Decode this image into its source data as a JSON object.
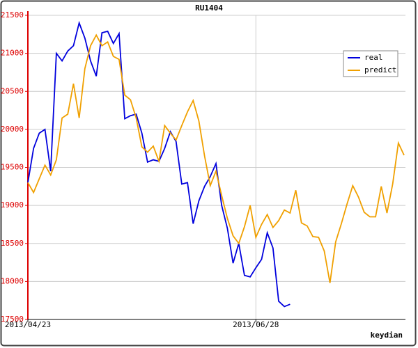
{
  "chart_data": {
    "type": "line",
    "title": "RU1404",
    "footer": "keydian",
    "categories": [
      "2013/04/23",
      null,
      null,
      null,
      null,
      null,
      null,
      null,
      null,
      null,
      null,
      null,
      null,
      null,
      null,
      null,
      null,
      null,
      null,
      null,
      null,
      null,
      null,
      null,
      null,
      null,
      null,
      null,
      null,
      null,
      null,
      null,
      null,
      null,
      null,
      null,
      null,
      null,
      null,
      null,
      "2013/06/28",
      null,
      null,
      null,
      null,
      null,
      null,
      null,
      null,
      null,
      null,
      null,
      null,
      null,
      null,
      null,
      null,
      null,
      null,
      null,
      null,
      null,
      null,
      null,
      null,
      null,
      null
    ],
    "series": [
      {
        "name": "real",
        "color": "#0000dd",
        "values": [
          19300,
          19750,
          19950,
          20000,
          19450,
          21000,
          20900,
          21030,
          21100,
          21400,
          21200,
          20900,
          20700,
          21270,
          21290,
          21130,
          21260,
          20140,
          20180,
          20200,
          19950,
          19570,
          19600,
          19580,
          19750,
          19970,
          19840,
          19280,
          19300,
          18760,
          19060,
          19250,
          19380,
          19550,
          19000,
          18700,
          18240,
          18500,
          18080,
          18060,
          18180,
          18290,
          18640,
          18440,
          17740,
          17670,
          17700,
          null,
          null,
          null,
          null,
          null,
          null,
          null,
          null,
          null,
          null,
          null,
          null,
          null,
          null,
          null,
          null,
          null,
          null,
          null,
          null
        ]
      },
      {
        "name": "predict",
        "color": "#f0a000",
        "values": [
          19300,
          19170,
          19350,
          19530,
          19400,
          19600,
          20150,
          20200,
          20600,
          20150,
          20800,
          21100,
          21240,
          21100,
          21150,
          20960,
          20920,
          20450,
          20390,
          20150,
          19770,
          19700,
          19780,
          19580,
          20050,
          19950,
          19860,
          20050,
          20230,
          20380,
          20110,
          19650,
          19260,
          19450,
          19130,
          18830,
          18600,
          18500,
          18720,
          19000,
          18580,
          18750,
          18880,
          18710,
          18800,
          18940,
          18900,
          19200,
          18770,
          18730,
          18590,
          18580,
          18400,
          17980,
          18520,
          18760,
          19020,
          19260,
          19110,
          18910,
          18850,
          18850,
          19250,
          18900,
          19280,
          19820,
          19660
        ]
      }
    ],
    "ylim": [
      17500,
      21500
    ],
    "yticks": [
      17500,
      18000,
      18500,
      19000,
      19500,
      20000,
      20500,
      21000,
      21500
    ],
    "grid": true,
    "legend": "upper right"
  }
}
